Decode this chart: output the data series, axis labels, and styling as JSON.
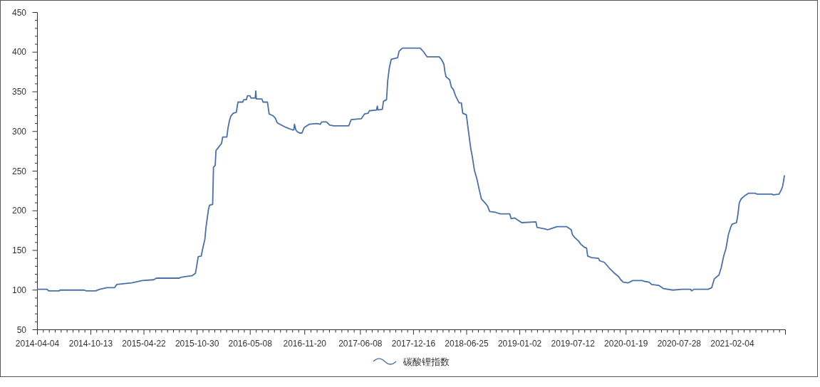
{
  "chart_data": {
    "type": "line",
    "x": [
      "2014-04-04",
      "2014-05-09",
      "2014-05-14",
      "2014-06-22",
      "2014-06-24",
      "2014-09-19",
      "2014-09-27",
      "2014-10-30",
      "2014-11-14",
      "2014-12-10",
      "2015-01-07",
      "2015-01-14",
      "2015-02-06",
      "2015-03-09",
      "2015-04-16",
      "2015-05-27",
      "2015-06-06",
      "2015-08-27",
      "2015-09-01",
      "2015-09-16",
      "2015-10-11",
      "2015-10-24",
      "2015-10-29",
      "2015-11-03",
      "2015-11-14",
      "2015-11-19",
      "2015-11-27",
      "2015-12-01",
      "2015-12-10",
      "2015-12-14",
      "2015-12-25",
      "2015-12-28",
      "2016-01-03",
      "2016-01-06",
      "2016-01-13",
      "2016-01-26",
      "2016-01-30",
      "2016-02-14",
      "2016-02-18",
      "2016-02-23",
      "2016-02-28",
      "2016-03-08",
      "2016-03-19",
      "2016-03-25",
      "2016-04-11",
      "2016-04-15",
      "2016-04-24",
      "2016-04-28",
      "2016-05-07",
      "2016-05-11",
      "2016-05-26",
      "2016-05-28",
      "2016-05-30",
      "2016-06-19",
      "2016-06-23",
      "2016-07-09",
      "2016-07-15",
      "2016-07-28",
      "2016-08-06",
      "2016-08-13",
      "2016-08-23",
      "2016-09-14",
      "2016-10-06",
      "2016-10-12",
      "2016-10-14",
      "2016-10-19",
      "2016-10-23",
      "2016-11-01",
      "2016-11-10",
      "2016-11-18",
      "2016-12-06",
      "2017-01-02",
      "2017-01-15",
      "2017-01-20",
      "2017-02-06",
      "2017-02-18",
      "2017-03-05",
      "2017-04-27",
      "2017-05-06",
      "2017-06-11",
      "2017-06-23",
      "2017-07-06",
      "2017-07-10",
      "2017-08-05",
      "2017-08-08",
      "2017-08-10",
      "2017-08-26",
      "2017-08-30",
      "2017-09-10",
      "2017-09-14",
      "2017-09-20",
      "2017-09-27",
      "2017-10-20",
      "2017-10-25",
      "2017-11-06",
      "2018-01-09",
      "2018-01-22",
      "2018-02-03",
      "2018-03-18",
      "2018-03-26",
      "2018-04-04",
      "2018-04-08",
      "2018-04-12",
      "2018-04-25",
      "2018-05-01",
      "2018-05-08",
      "2018-05-16",
      "2018-05-29",
      "2018-06-06",
      "2018-06-11",
      "2018-06-24",
      "2018-07-02",
      "2018-07-10",
      "2018-07-15",
      "2018-07-23",
      "2018-08-01",
      "2018-08-09",
      "2018-08-17",
      "2018-08-30",
      "2018-09-08",
      "2018-09-16",
      "2018-10-07",
      "2018-10-24",
      "2018-11-27",
      "2018-12-02",
      "2018-12-14",
      "2019-01-09",
      "2019-03-01",
      "2019-03-05",
      "2019-04-04",
      "2019-04-12",
      "2019-04-21",
      "2019-05-08",
      "2019-05-16",
      "2019-06-19",
      "2019-07-06",
      "2019-07-10",
      "2019-07-19",
      "2019-08-01",
      "2019-08-09",
      "2019-08-22",
      "2019-08-30",
      "2019-09-03",
      "2019-09-16",
      "2019-10-12",
      "2019-10-16",
      "2019-11-02",
      "2019-11-19",
      "2019-12-06",
      "2019-12-23",
      "2019-12-31",
      "2020-01-09",
      "2020-01-26",
      "2020-02-12",
      "2020-03-17",
      "2020-03-25",
      "2020-04-11",
      "2020-04-20",
      "2020-05-15",
      "2020-06-01",
      "2020-07-05",
      "2020-08-08",
      "2020-09-07",
      "2020-09-11",
      "2020-09-19",
      "2020-11-09",
      "2020-11-22",
      "2020-12-01",
      "2020-12-18",
      "2020-12-26",
      "2021-01-04",
      "2021-01-12",
      "2021-01-21",
      "2021-01-29",
      "2021-02-03",
      "2021-02-19",
      "2021-02-24",
      "2021-03-01",
      "2021-03-08",
      "2021-03-21",
      "2021-04-03",
      "2021-04-28",
      "2021-05-03",
      "2021-06-27",
      "2021-07-01",
      "2021-07-22",
      "2021-07-31",
      "2021-08-04",
      "2021-08-08",
      "2021-08-10"
    ],
    "series": [
      {
        "name": "碳酸锂指数",
        "color": "#4a70a8",
        "values": [
          101,
          101,
          99,
          99,
          100,
          100,
          99,
          99,
          101,
          103,
          103,
          107,
          108,
          109,
          112,
          113,
          115,
          115,
          116,
          117,
          118,
          121,
          131,
          142,
          143,
          152,
          164,
          179,
          202,
          207,
          208,
          255,
          257,
          276,
          279,
          285,
          293,
          293,
          304,
          313,
          319,
          323,
          324,
          337,
          337,
          340,
          340,
          345,
          345,
          342,
          342,
          351,
          341,
          341,
          337,
          337,
          322,
          320,
          317,
          311,
          309,
          305,
          302,
          302,
          309,
          302,
          300,
          298,
          298,
          305,
          309,
          310,
          309,
          312,
          312,
          308,
          307,
          307,
          315,
          316,
          322,
          323,
          326,
          327,
          332,
          327,
          328,
          338,
          340,
          363,
          380,
          391,
          393,
          401,
          405,
          405,
          400,
          394,
          394,
          391,
          385,
          375,
          369,
          365,
          356,
          353,
          345,
          336,
          336,
          323,
          321,
          299,
          278,
          269,
          251,
          240,
          227,
          215,
          210,
          206,
          199,
          198,
          196,
          196,
          190,
          191,
          185,
          186,
          179,
          177,
          176,
          177,
          179,
          180,
          180,
          176,
          170,
          166,
          162,
          158,
          154,
          153,
          143,
          141,
          140,
          137,
          135,
          128,
          122,
          117,
          113,
          110,
          109,
          112,
          112,
          111,
          110,
          107,
          106,
          102,
          100,
          101,
          101,
          99,
          101,
          101,
          103,
          114,
          119,
          128,
          143,
          152,
          170,
          179,
          183,
          185,
          195,
          210,
          215,
          219,
          222,
          222,
          221,
          221,
          220,
          221,
          227,
          231,
          239,
          244
        ]
      }
    ],
    "xlim": [
      "2014-04-04",
      "2021-08-14"
    ],
    "xticks": [
      "2014-04-04",
      "2014-10-13",
      "2015-04-22",
      "2015-10-30",
      "2016-05-08",
      "2016-11-20",
      "2017-06-08",
      "2017-12-16",
      "2018-06-25",
      "2019-01-02",
      "2019-07-12",
      "2020-01-19",
      "2020-07-28",
      "2021-02-04",
      {
        "value": "2021-08-14",
        "label": null
      }
    ],
    "ylim": [
      50,
      450
    ],
    "yticks": [
      50,
      100,
      150,
      200,
      250,
      300,
      350,
      400,
      450
    ],
    "legend": "bottom"
  }
}
